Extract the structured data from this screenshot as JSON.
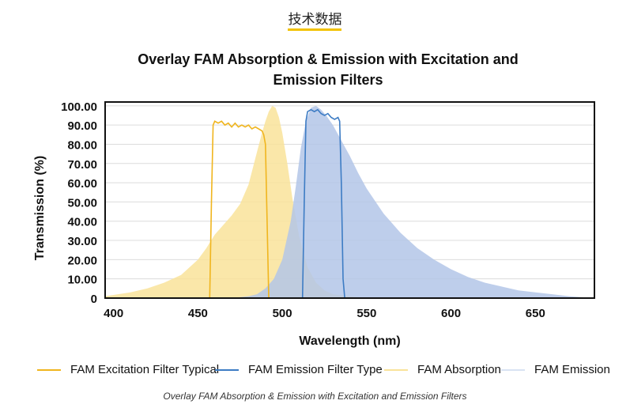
{
  "page": {
    "section_title": "技术数据",
    "accent_color": "#f2c200",
    "caption": "Overlay FAM Absorption & Emission with Excitation and Emission Filters"
  },
  "chart_data": {
    "type": "area",
    "title_lines": [
      "Overlay FAM Absorption & Emission with Excitation and",
      "Emission Filters"
    ],
    "xlabel": "Wavelength (nm)",
    "ylabel": "Transmission (%)",
    "xlim": [
      395,
      685
    ],
    "ylim": [
      0,
      102
    ],
    "x_ticks": [
      400,
      450,
      500,
      550,
      600,
      650
    ],
    "y_ticks": [
      0,
      10,
      20,
      30,
      40,
      50,
      60,
      70,
      80,
      90,
      100
    ],
    "y_tick_labels": [
      "0",
      "10.00",
      "20.00",
      "30.00",
      "40.00",
      "50.00",
      "60.00",
      "70.00",
      "80.00",
      "90.00",
      "100.00"
    ],
    "grid": "horizontal",
    "legend_position": "bottom",
    "series": [
      {
        "name": "FAM Absorption",
        "style": "fill",
        "color": "#f9e39a",
        "x": [
          395,
          410,
          420,
          430,
          440,
          450,
          455,
          460,
          465,
          470,
          475,
          480,
          485,
          488,
          490,
          492,
          494,
          496,
          498,
          500,
          503,
          506,
          510,
          515,
          520,
          525,
          530,
          540,
          550
        ],
        "y": [
          1,
          3,
          5,
          8,
          12,
          20,
          26,
          33,
          38,
          43,
          49,
          59,
          76,
          86,
          92,
          97,
          100,
          99,
          94,
          86,
          70,
          52,
          32,
          16,
          8,
          4,
          2,
          1,
          0
        ]
      },
      {
        "name": "FAM Emission",
        "style": "fill",
        "color": "#b3c6e8",
        "x": [
          470,
          480,
          485,
          490,
          495,
          500,
          505,
          508,
          511,
          514,
          517,
          520,
          523,
          526,
          530,
          535,
          540,
          545,
          550,
          560,
          570,
          580,
          590,
          600,
          610,
          620,
          630,
          640,
          650,
          660,
          670,
          685
        ],
        "y": [
          0,
          1,
          2,
          5,
          10,
          20,
          40,
          58,
          78,
          92,
          99,
          100,
          98,
          95,
          90,
          82,
          74,
          65,
          57,
          44,
          34,
          26,
          20,
          15,
          11,
          8,
          6,
          4,
          3,
          2,
          1,
          0
        ]
      },
      {
        "name": "FAM Excitation Filter Typical",
        "style": "line",
        "color": "#f0b51e",
        "x": [
          457,
          458,
          459,
          460,
          462,
          464,
          466,
          468,
          470,
          472,
          474,
          476,
          478,
          480,
          482,
          484,
          486,
          488,
          489,
          490,
          491,
          492
        ],
        "y": [
          0,
          50,
          90,
          92,
          91,
          92,
          90,
          91,
          89,
          91,
          89,
          90,
          89,
          90,
          88,
          89,
          88,
          87,
          85,
          80,
          40,
          0
        ]
      },
      {
        "name": "FAM Emission Filter Type",
        "style": "line",
        "color": "#3d7cc4",
        "x": [
          512,
          513,
          514,
          515,
          517,
          519,
          521,
          523,
          525,
          527,
          529,
          531,
          533,
          534,
          535,
          536,
          537
        ],
        "y": [
          0,
          50,
          92,
          97,
          98,
          97,
          98,
          96,
          95,
          96,
          94,
          93,
          94,
          92,
          60,
          10,
          0
        ]
      }
    ],
    "legend": [
      {
        "label": "FAM Excitation Filter Typical",
        "color": "#f0b51e"
      },
      {
        "label": "FAM Emission Filter Type",
        "color": "#3d7cc4"
      },
      {
        "label": "FAM Absorption",
        "color": "#f9e39a"
      },
      {
        "label": "FAM Emission",
        "color": "#d9e3f3"
      }
    ]
  }
}
